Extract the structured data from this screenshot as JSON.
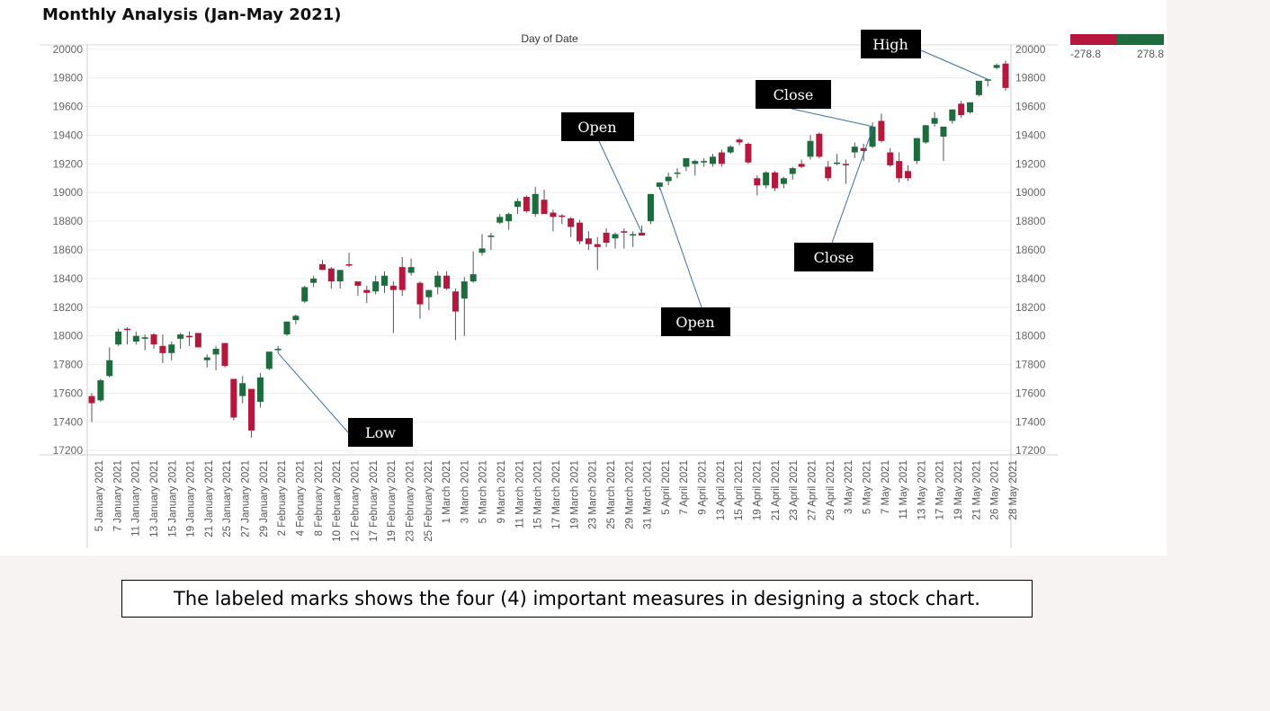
{
  "title": "Monthly Analysis (Jan-May 2021)",
  "caption": "The labeled marks shows the four (4) important measures in designing a stock chart.",
  "colors": {
    "up": "#1e6b3e",
    "down": "#b5173d",
    "wick": "#555555",
    "annotation_bg": "#000000",
    "annotation_line": "#3a6ea5"
  },
  "legend": {
    "min_label": "-278.8",
    "max_label": "278.8"
  },
  "annotations": [
    {
      "label": "High",
      "candle_index": 101
    },
    {
      "label": "Close",
      "candle_index": 88
    },
    {
      "label": "Open",
      "candle_index": 62
    },
    {
      "label": "Low",
      "candle_index": 21
    },
    {
      "label": "Close",
      "candle_index": 88
    },
    {
      "label": "Open",
      "candle_index": 64
    }
  ],
  "chart_data": {
    "type": "candlestick",
    "x_axis_title": "Day of Date",
    "y_ticks": [
      17200,
      17400,
      17600,
      17800,
      18000,
      18200,
      18400,
      18600,
      18800,
      19000,
      19200,
      19400,
      19600,
      19800,
      20000
    ],
    "ylim": [
      17170,
      20030
    ],
    "grid": true,
    "date_labels": [
      "5 January 2021",
      "7 January 2021",
      "11 January 2021",
      "13 January 2021",
      "15 January 2021",
      "19 January 2021",
      "21 January 2021",
      "25 January 2021",
      "27 January 2021",
      "29 January 2021",
      "2 February 2021",
      "4 February 2021",
      "8 February 2021",
      "10 February 2021",
      "12 February 2021",
      "17 February 2021",
      "19 February 2021",
      "23 February 2021",
      "25 February 2021",
      "1 March 2021",
      "3 March 2021",
      "5 March 2021",
      "9 March 2021",
      "11 March 2021",
      "15 March 2021",
      "17 March 2021",
      "19 March 2021",
      "23 March 2021",
      "25 March 2021",
      "29 March 2021",
      "31 March 2021",
      "5 April 2021",
      "7 April 2021",
      "9 April 2021",
      "13 April 2021",
      "15 April 2021",
      "19 April 2021",
      "21 April 2021",
      "23 April 2021",
      "27 April 2021",
      "29 April 2021",
      "3 May 2021",
      "5 May 2021",
      "7 May 2021",
      "11 May 2021",
      "13 May 2021",
      "17 May 2021",
      "19 May 2021",
      "21 May 2021",
      "26 May 2021",
      "28 May 2021"
    ],
    "ohlc": [
      [
        17580,
        17600,
        17400,
        17530
      ],
      [
        17550,
        17700,
        17540,
        17690
      ],
      [
        17720,
        17920,
        17710,
        17830
      ],
      [
        17940,
        18050,
        17930,
        18030
      ],
      [
        18050,
        18060,
        17940,
        18040
      ],
      [
        17960,
        18030,
        17940,
        18000
      ],
      [
        17980,
        18010,
        17900,
        17990
      ],
      [
        18010,
        18020,
        17910,
        17940
      ],
      [
        17930,
        18010,
        17810,
        17880
      ],
      [
        17880,
        17960,
        17830,
        17940
      ],
      [
        17980,
        18020,
        17910,
        18010
      ],
      [
        18000,
        18030,
        17930,
        17990
      ],
      [
        18020,
        18020,
        17930,
        17920
      ],
      [
        17830,
        17870,
        17780,
        17850
      ],
      [
        17870,
        17930,
        17760,
        17910
      ],
      [
        17950,
        17950,
        17780,
        17790
      ],
      [
        17700,
        17700,
        17410,
        17430
      ],
      [
        17580,
        17720,
        17530,
        17670
      ],
      [
        17630,
        17620,
        17290,
        17340
      ],
      [
        17540,
        17740,
        17500,
        17710
      ],
      [
        17770,
        17880,
        17760,
        17890
      ],
      [
        17900,
        17930,
        17880,
        17910
      ],
      [
        18010,
        18080,
        18000,
        18100
      ],
      [
        18110,
        18150,
        18080,
        18140
      ],
      [
        18240,
        18350,
        18230,
        18340
      ],
      [
        18370,
        18420,
        18340,
        18400
      ],
      [
        18500,
        18530,
        18460,
        18460
      ],
      [
        18470,
        18480,
        18330,
        18380
      ],
      [
        18380,
        18450,
        18330,
        18460
      ],
      [
        18500,
        18580,
        18480,
        18490
      ],
      [
        18380,
        18380,
        18280,
        18350
      ],
      [
        18320,
        18350,
        18230,
        18300
      ],
      [
        18310,
        18420,
        18290,
        18380
      ],
      [
        18350,
        18450,
        18300,
        18420
      ],
      [
        18350,
        18380,
        18020,
        18320
      ],
      [
        18480,
        18550,
        18280,
        18320
      ],
      [
        18440,
        18540,
        18420,
        18480
      ],
      [
        18370,
        18380,
        18120,
        18220
      ],
      [
        18270,
        18310,
        18180,
        18320
      ],
      [
        18340,
        18450,
        18290,
        18420
      ],
      [
        18420,
        18450,
        18320,
        18330
      ],
      [
        18310,
        18330,
        17970,
        18170
      ],
      [
        18260,
        18410,
        18000,
        18380
      ],
      [
        18380,
        18590,
        18370,
        18430
      ],
      [
        18580,
        18710,
        18560,
        18610
      ],
      [
        18690,
        18720,
        18600,
        18700
      ],
      [
        18790,
        18850,
        18780,
        18830
      ],
      [
        18800,
        18860,
        18740,
        18850
      ],
      [
        18900,
        18960,
        18850,
        18940
      ],
      [
        18970,
        18980,
        18860,
        18870
      ],
      [
        18850,
        19040,
        18830,
        18990
      ],
      [
        18950,
        19020,
        18860,
        18850
      ],
      [
        18860,
        18880,
        18730,
        18830
      ],
      [
        18840,
        18850,
        18780,
        18830
      ],
      [
        18820,
        18830,
        18690,
        18760
      ],
      [
        18790,
        18810,
        18640,
        18660
      ],
      [
        18680,
        18730,
        18600,
        18640
      ],
      [
        18640,
        18690,
        18460,
        18620
      ],
      [
        18720,
        18750,
        18620,
        18650
      ],
      [
        18680,
        18720,
        18610,
        18710
      ],
      [
        18730,
        18750,
        18610,
        18720
      ],
      [
        18700,
        18730,
        18620,
        18710
      ],
      [
        18720,
        18770,
        18700,
        18700
      ],
      [
        18800,
        18990,
        18780,
        18990
      ],
      [
        19040,
        19070,
        19020,
        19070
      ],
      [
        19080,
        19140,
        19050,
        19110
      ],
      [
        19140,
        19170,
        19100,
        19140
      ],
      [
        19180,
        19240,
        19150,
        19240
      ],
      [
        19200,
        19230,
        19120,
        19220
      ],
      [
        19210,
        19240,
        19180,
        19220
      ],
      [
        19200,
        19270,
        19180,
        19250
      ],
      [
        19280,
        19300,
        19180,
        19200
      ],
      [
        19280,
        19330,
        19270,
        19320
      ],
      [
        19370,
        19380,
        19330,
        19350
      ],
      [
        19340,
        19350,
        19200,
        19210
      ],
      [
        19100,
        19120,
        18980,
        19050
      ],
      [
        19050,
        19150,
        19030,
        19140
      ],
      [
        19140,
        19150,
        19010,
        19030
      ],
      [
        19060,
        19110,
        19030,
        19100
      ],
      [
        19130,
        19180,
        19090,
        19170
      ],
      [
        19200,
        19230,
        19170,
        19180
      ],
      [
        19250,
        19400,
        19230,
        19360
      ],
      [
        19410,
        19420,
        19240,
        19250
      ],
      [
        19180,
        19220,
        19080,
        19100
      ],
      [
        19200,
        19270,
        19190,
        19210
      ],
      [
        19200,
        19230,
        19060,
        19190
      ],
      [
        19280,
        19350,
        19240,
        19320
      ],
      [
        19310,
        19340,
        19220,
        19290
      ],
      [
        19320,
        19490,
        19310,
        19460
      ],
      [
        19500,
        19550,
        19350,
        19360
      ],
      [
        19280,
        19310,
        19180,
        19190
      ],
      [
        19220,
        19280,
        19070,
        19100
      ],
      [
        19150,
        19190,
        19080,
        19100
      ],
      [
        19220,
        19380,
        19200,
        19380
      ],
      [
        19350,
        19470,
        19340,
        19470
      ],
      [
        19480,
        19560,
        19460,
        19520
      ],
      [
        19390,
        19450,
        19220,
        19460
      ],
      [
        19500,
        19580,
        19480,
        19580
      ],
      [
        19620,
        19640,
        19520,
        19540
      ],
      [
        19560,
        19620,
        19550,
        19630
      ],
      [
        19680,
        19780,
        19670,
        19780
      ],
      [
        19780,
        19790,
        19740,
        19790
      ],
      [
        19870,
        19900,
        19860,
        19890
      ],
      [
        19900,
        19920,
        19710,
        19730
      ]
    ]
  }
}
